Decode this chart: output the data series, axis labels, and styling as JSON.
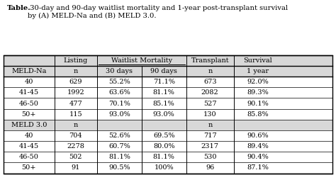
{
  "title_bold": "Table.",
  "title_rest": " 30-day and 90-day waitlist mortality and 1-year post-transplant survival\nby (A) MELD-Na and (B) MELD 3.0.",
  "header_row1_cols": [
    "",
    "Listing",
    "Waitlist Mortality",
    "Transplant",
    "Survival"
  ],
  "header_row2": [
    "MELD-Na",
    "n",
    "30 days",
    "90 days",
    "n",
    "1 year"
  ],
  "data_rows": [
    [
      "40",
      "629",
      "55.2%",
      "71.1%",
      "673",
      "92.0%"
    ],
    [
      "41-45",
      "1992",
      "63.6%",
      "81.1%",
      "2082",
      "89.3%"
    ],
    [
      "46-50",
      "477",
      "70.1%",
      "85.1%",
      "527",
      "90.1%"
    ],
    [
      "50+",
      "115",
      "93.0%",
      "93.0%",
      "130",
      "85.8%"
    ],
    [
      "MELD 3.0",
      "n",
      "",
      "",
      "n",
      ""
    ],
    [
      "40",
      "704",
      "52.6%",
      "69.5%",
      "717",
      "90.6%"
    ],
    [
      "41-45",
      "2278",
      "60.7%",
      "80.0%",
      "2317",
      "89.4%"
    ],
    [
      "46-50",
      "502",
      "81.1%",
      "81.1%",
      "530",
      "90.4%"
    ],
    [
      "50+",
      "91",
      "90.5%",
      "100%",
      "96",
      "87.1%"
    ]
  ],
  "light_gray": "#d8d8d8",
  "white": "#ffffff",
  "font_size": 7.0,
  "title_font_size": 7.2
}
